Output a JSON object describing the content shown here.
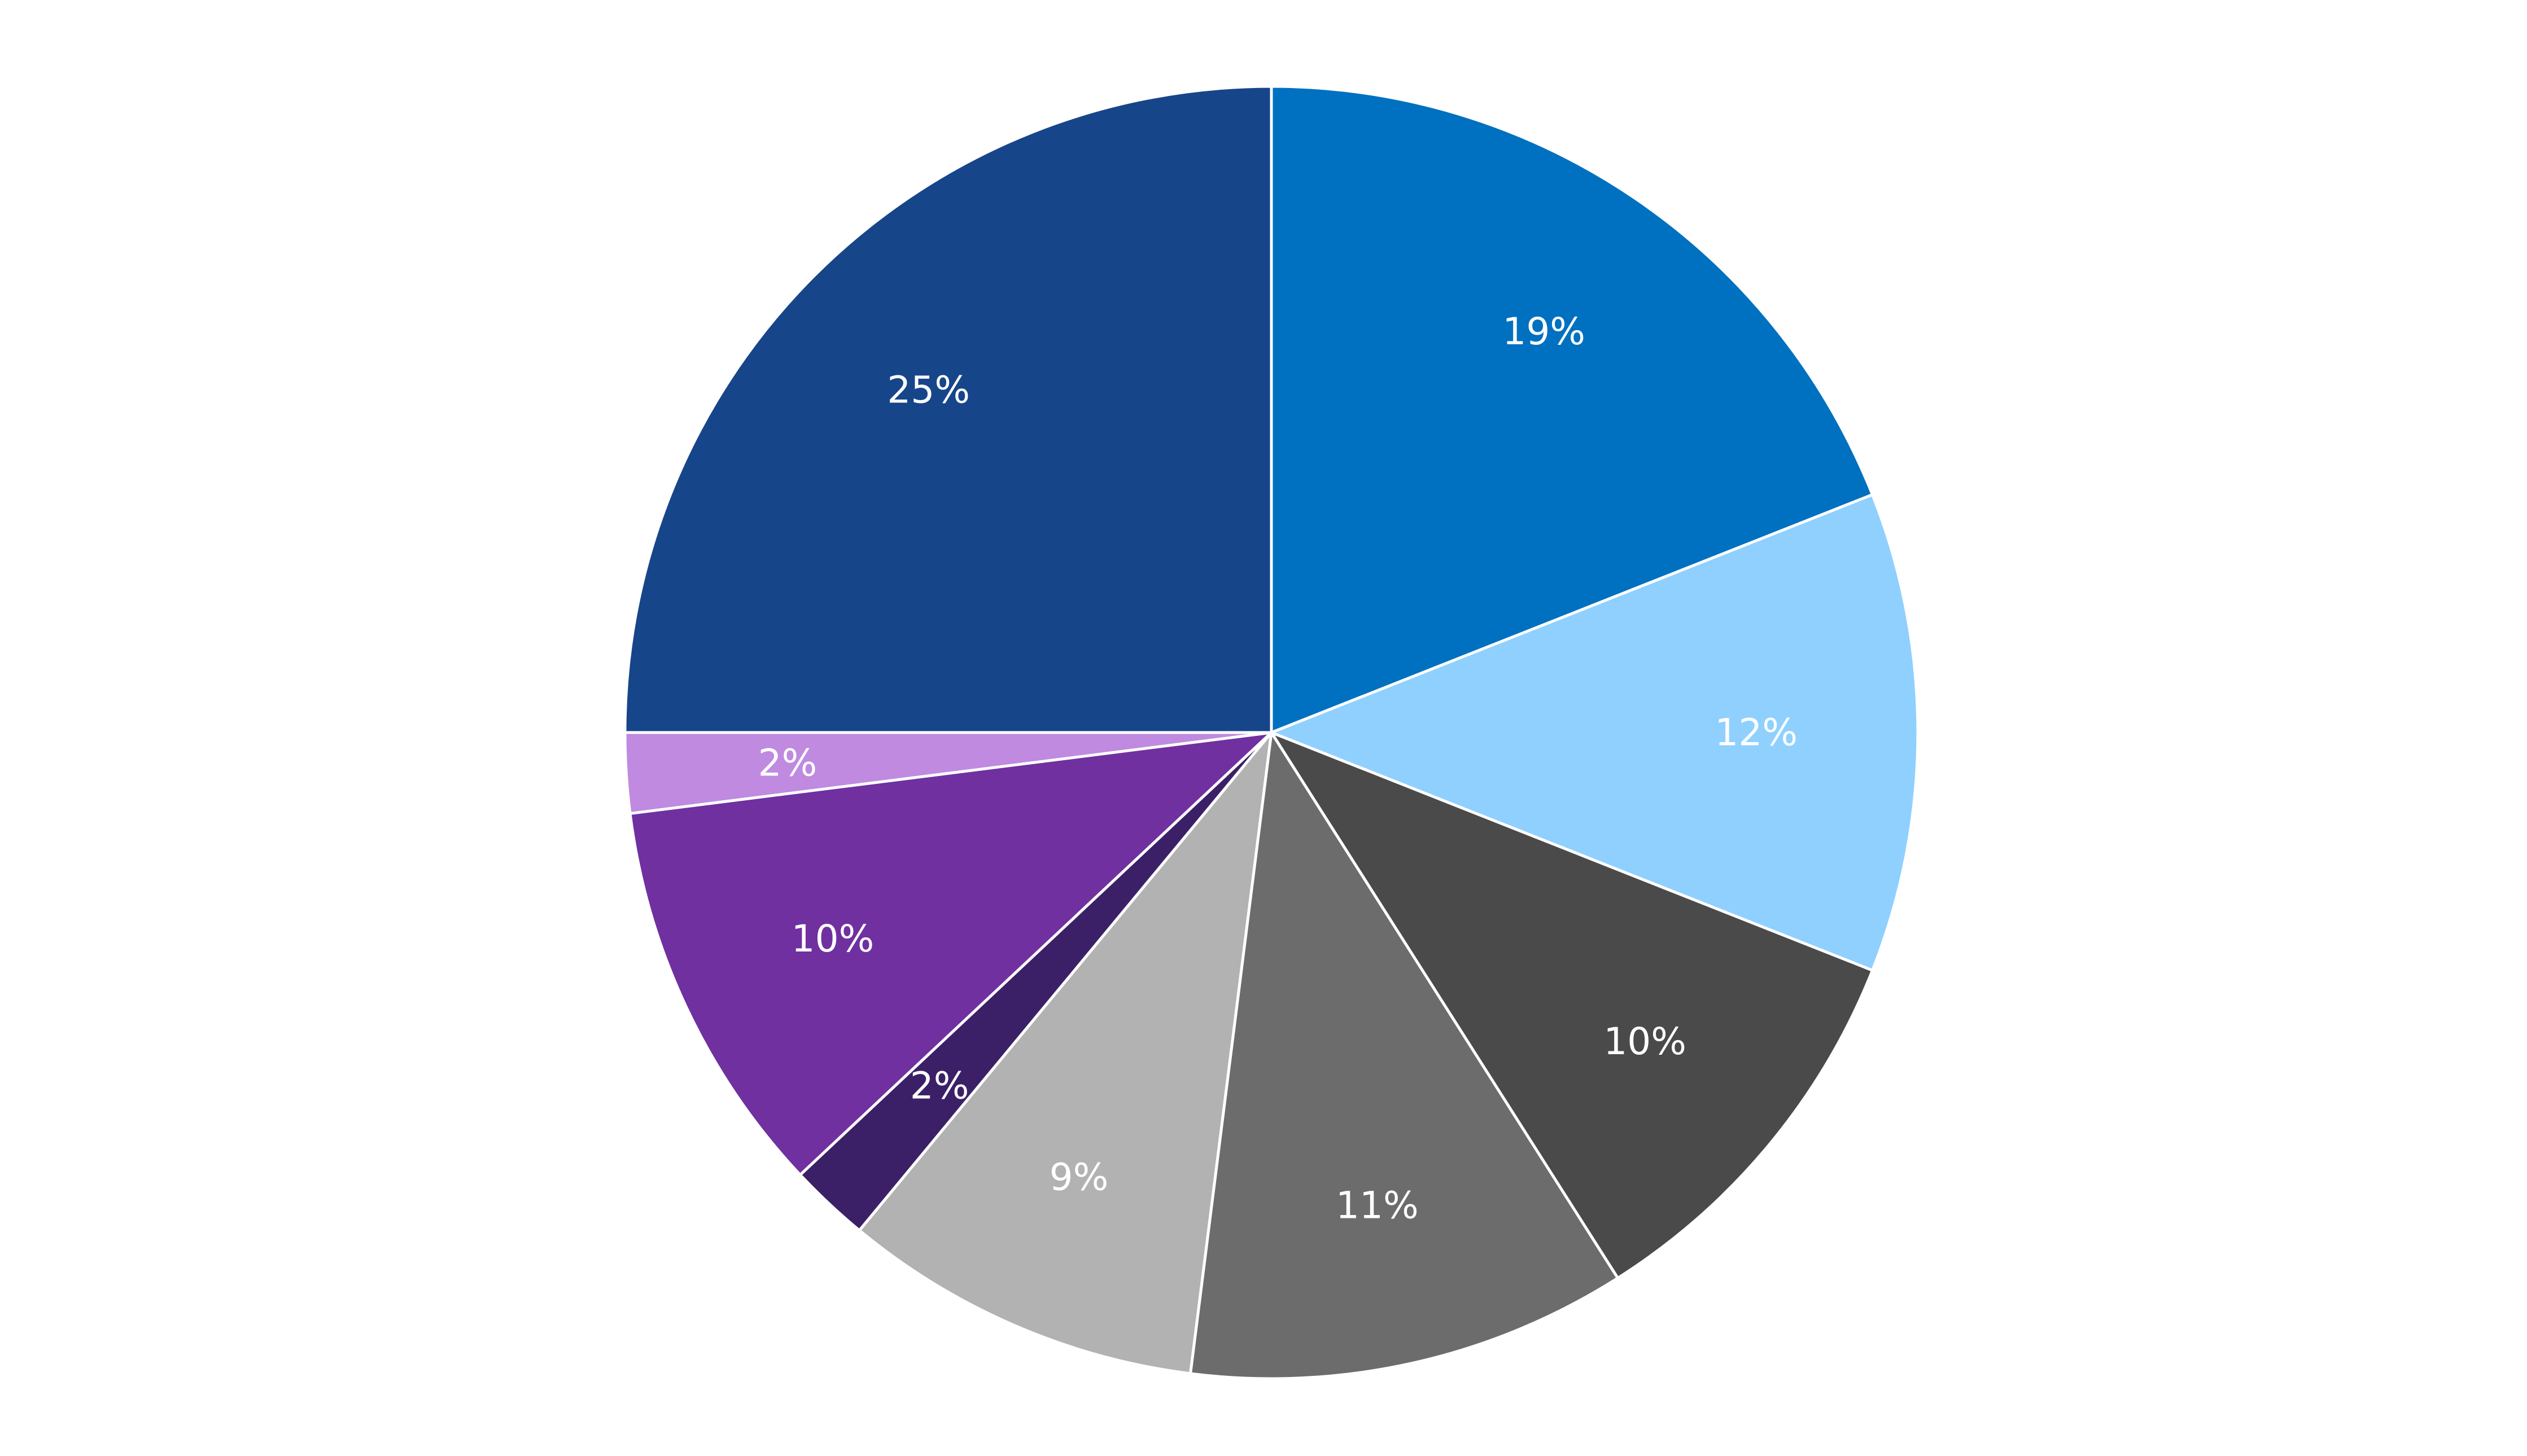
{
  "chart_data": {
    "type": "pie",
    "title": "",
    "start_angle_deg": 0,
    "direction": "clockwise",
    "slices": [
      {
        "label": "19%",
        "value": 19,
        "color": "#0070C0"
      },
      {
        "label": "12%",
        "value": 12,
        "color": "#8FD0FF"
      },
      {
        "label": "10%",
        "value": 10,
        "color": "#4A4A4A"
      },
      {
        "label": "11%",
        "value": 11,
        "color": "#6C6C6C"
      },
      {
        "label": "9%",
        "value": 9,
        "color": "#B2B2B2"
      },
      {
        "label": "2%",
        "value": 2,
        "color": "#3B2068"
      },
      {
        "label": "10%",
        "value": 10,
        "color": "#7030A0"
      },
      {
        "label": "2%",
        "value": 2,
        "color": "#BF8AE0"
      },
      {
        "label": "25%",
        "value": 25,
        "color": "#17458A"
      }
    ],
    "slice_border_color": "#FFFFFF",
    "data_labels": true,
    "legend": "none"
  }
}
